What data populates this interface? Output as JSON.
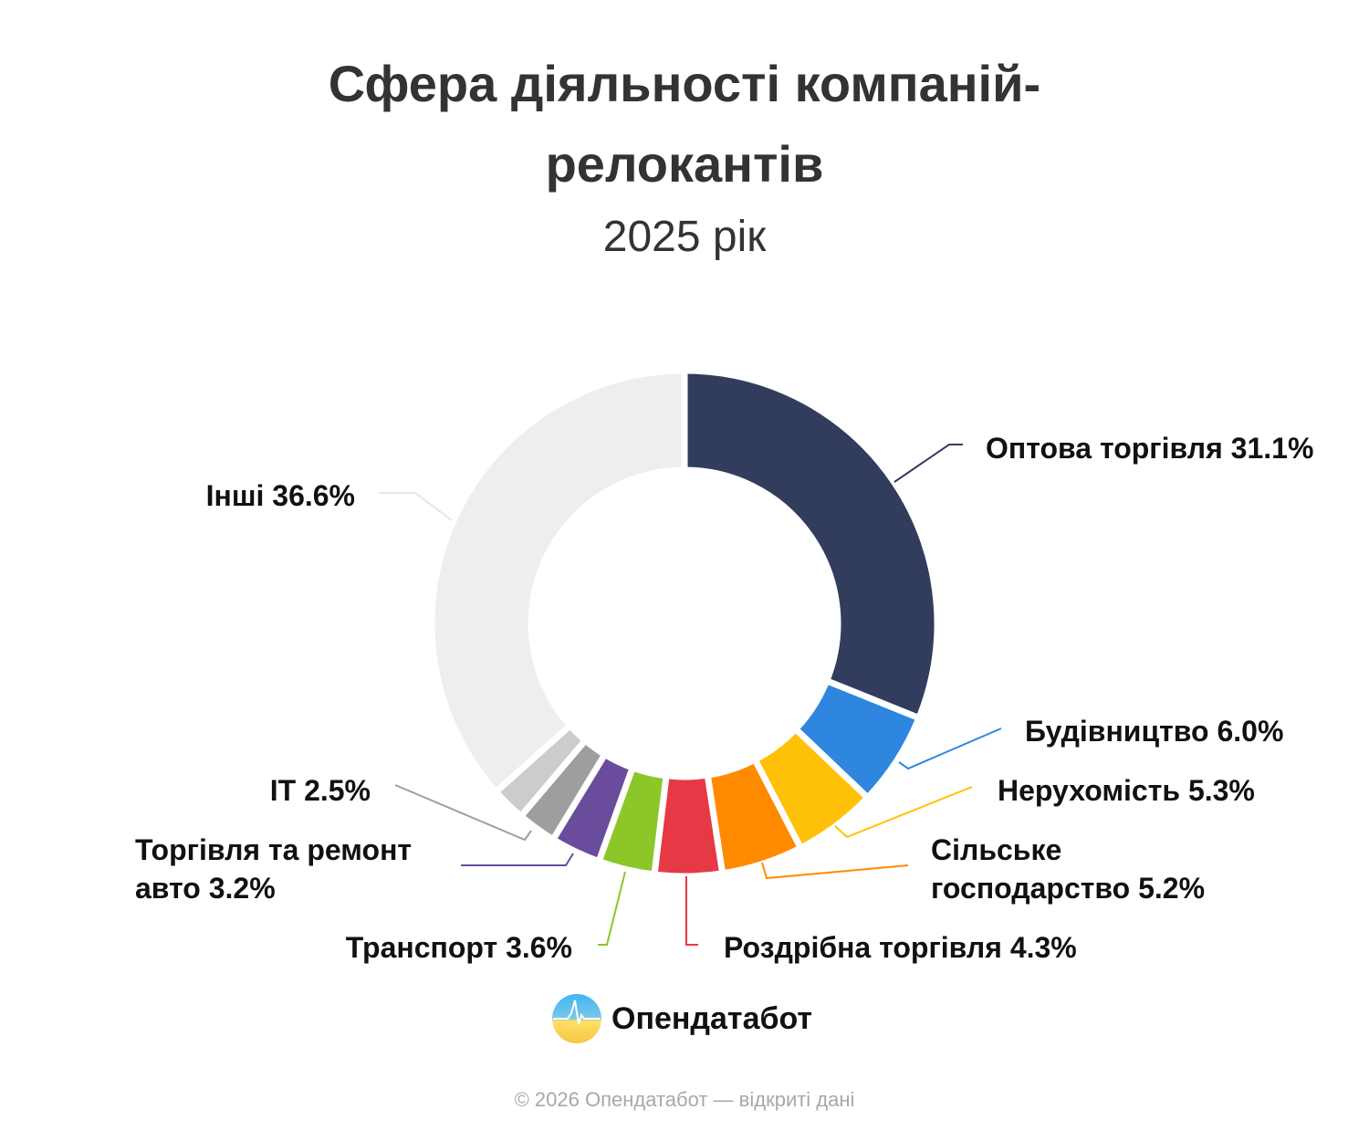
{
  "chart_data": {
    "type": "pie",
    "donut": true,
    "title_lines": [
      "Сфера діяльності компаній-",
      "релокантів"
    ],
    "subtitle": "2025 рік",
    "slices": [
      {
        "label": "Оптова торгівля 31.1%",
        "name": "Оптова торгівля",
        "value": 31.1,
        "color": "#323c5c"
      },
      {
        "label": "Будівництво 6.0%",
        "name": "Будівництво",
        "value": 6.0,
        "color": "#2e86de"
      },
      {
        "label": "Нерухомість 5.3%",
        "name": "Нерухомість",
        "value": 5.3,
        "color": "#ffc107"
      },
      {
        "label": "Сільське господарство 5.2%",
        "name": "Сільське господарство",
        "value": 5.2,
        "color": "#ff8a00"
      },
      {
        "label": "Роздрібна торгівля 4.3%",
        "name": "Роздрібна торгівля",
        "value": 4.3,
        "color": "#e63946"
      },
      {
        "label": "Транспорт 3.6%",
        "name": "Транспорт",
        "value": 3.6,
        "color": "#8cc629"
      },
      {
        "label": "Торгівля та ремонт авто 3.2%",
        "name": "Торгівля та ремонт авто",
        "value": 3.2,
        "color": "#6a4c9c"
      },
      {
        "label": "IT 2.5%",
        "name": "IT",
        "value": 2.5,
        "color": "#9e9e9e"
      },
      {
        "label": "",
        "name": "",
        "value": 2.2,
        "color": "#cccccc"
      },
      {
        "label": "Інші 36.6%",
        "name": "Інші",
        "value": 36.6,
        "color": "#eeeeee"
      }
    ]
  },
  "branding": {
    "logo_text": "Опендатабот",
    "logo_colors": [
      "#3fb6f0",
      "#ffd34d"
    ]
  },
  "footer": "© 2026 Опендатабот — відкриті дані"
}
